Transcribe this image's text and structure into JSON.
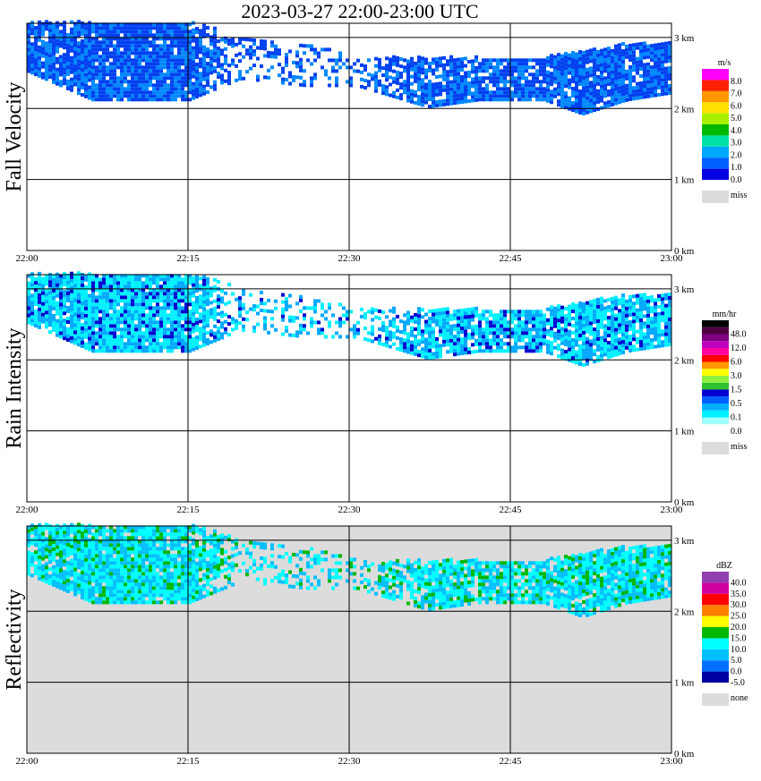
{
  "title": "2023-03-27   22:00-23:00 UTC",
  "chart_data": [
    {
      "type": "heatmap",
      "ylabel": "Fall Velocity",
      "xticks": [
        "22:00",
        "22:15",
        "22:30",
        "22:45",
        "23:00"
      ],
      "yticks": [
        "0 km",
        "1 km",
        "2 km",
        "3 km"
      ],
      "ylim": [
        0,
        3.2
      ],
      "legend": {
        "unit": "m/s",
        "colors": [
          "#0000e0",
          "#0060ff",
          "#00a8ff",
          "#00e0a8",
          "#00b800",
          "#a8f000",
          "#ffe000",
          "#ff9800",
          "#ff2000",
          "#ff00ff"
        ],
        "labels": [
          "0.0",
          "1.0",
          "2.0",
          "3.0",
          "4.0",
          "5.0",
          "6.0",
          "7.0",
          "8.0"
        ],
        "miss_label": "miss",
        "miss_color": "#dcdcdc"
      },
      "dominant_colors": [
        "#0040f0",
        "#0088ff"
      ],
      "background": "#ffffff"
    },
    {
      "type": "heatmap",
      "ylabel": "Rain Intensity",
      "xticks": [
        "22:00",
        "22:15",
        "22:30",
        "22:45",
        "23:00"
      ],
      "yticks": [
        "0 km",
        "1 km",
        "2 km",
        "3 km"
      ],
      "ylim": [
        0,
        3.2
      ],
      "legend": {
        "unit": "mm/hr",
        "colors": [
          "#ffffff",
          "#a0ffff",
          "#00f0ff",
          "#00b0ff",
          "#0060ff",
          "#0000d0",
          "#30c030",
          "#90f040",
          "#ffff00",
          "#ff9800",
          "#ff0000",
          "#ff00a0",
          "#c000c0",
          "#800080",
          "#500040",
          "#000000"
        ],
        "labels": [
          "0.0",
          "0.1",
          "0.5",
          "1.5",
          "3.0",
          "6.0",
          "12.0",
          "48.0"
        ],
        "miss_label": "miss",
        "miss_color": "#dcdcdc"
      },
      "dominant_colors": [
        "#00f0ff",
        "#00a8ff",
        "#0000d0"
      ],
      "background": "#ffffff"
    },
    {
      "type": "heatmap",
      "ylabel": "Reflectivity",
      "xticks": [
        "22:00",
        "22:15",
        "22:30",
        "22:45",
        "23:00"
      ],
      "yticks": [
        "0 km",
        "1 km",
        "2 km",
        "3 km"
      ],
      "ylim": [
        0,
        3.2
      ],
      "legend": {
        "unit": "dBZ",
        "colors": [
          "#0000a0",
          "#0070ff",
          "#00c0ff",
          "#00ffff",
          "#00b800",
          "#ffff00",
          "#ff8000",
          "#ff0000",
          "#d000a0",
          "#9040b0"
        ],
        "labels": [
          "-5.0",
          "0.0",
          "5.0",
          "10.0",
          "15.0",
          "20.0",
          "25.0",
          "30.0",
          "35.0",
          "40.0"
        ],
        "miss_label": "none",
        "miss_color": "#dcdcdc"
      },
      "dominant_colors": [
        "#00ffff",
        "#00c0ff",
        "#00b800"
      ],
      "background": "#dcdcdc"
    }
  ]
}
